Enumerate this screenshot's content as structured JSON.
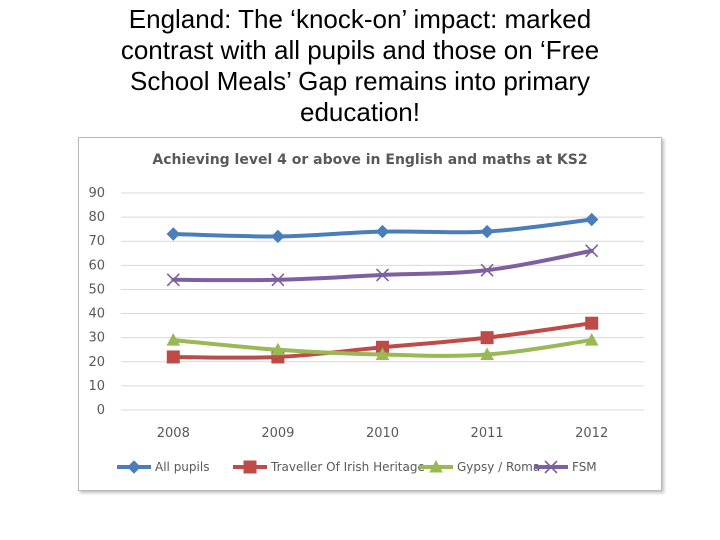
{
  "slide": {
    "title_lines": [
      "England: The ‘knock-on’ impact: marked",
      "contrast with all pupils and those on ‘Free",
      "School Meals’ Gap remains into primary",
      "education!"
    ]
  },
  "chart_data": {
    "type": "line",
    "title": "Achieving level 4 or above in English and maths at KS2",
    "xlabel": "",
    "ylabel": "",
    "categories": [
      "2008",
      "2009",
      "2010",
      "2011",
      "2012"
    ],
    "ylim": [
      0,
      90
    ],
    "yticks": [
      "0",
      "10",
      "20",
      "30",
      "40",
      "50",
      "60",
      "70",
      "80",
      "90"
    ],
    "grid": true,
    "legend_position": "bottom",
    "series": [
      {
        "name": "All pupils",
        "values": [
          73,
          72,
          74,
          74,
          79
        ],
        "color": "#4a7ebb",
        "marker": "diamond"
      },
      {
        "name": "Traveller Of Irish Heritage",
        "values": [
          22,
          22,
          26,
          30,
          36
        ],
        "color": "#be4b48",
        "marker": "square"
      },
      {
        "name": "Gypsy / Roma",
        "values": [
          29,
          25,
          23,
          23,
          29
        ],
        "color": "#98b954",
        "marker": "triangle"
      },
      {
        "name": "FSM",
        "values": [
          54,
          54,
          56,
          58,
          66
        ],
        "color": "#7d60a0",
        "marker": "x"
      }
    ]
  }
}
